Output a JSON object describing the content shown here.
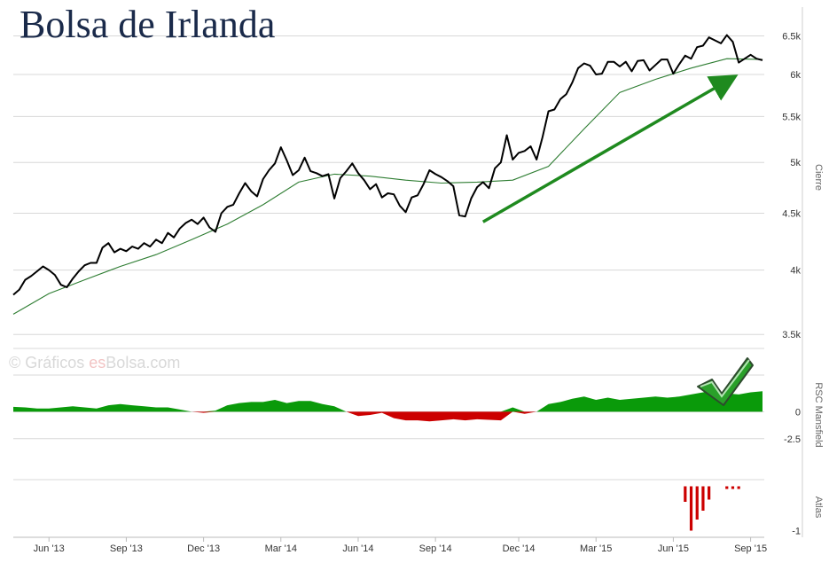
{
  "title": "Bolsa de Irlanda",
  "watermark": {
    "prefix": "© Gráficos ",
    "brand": "es",
    "suffix": "Bolsa.com"
  },
  "colors": {
    "price": "#000000",
    "moving_average": "#2e7d32",
    "trend_arrow": "#1f8a1f",
    "positive_fill": "#0a9a0a",
    "negative_fill": "#cc0000",
    "atlas_bars": "#cc0000",
    "grid": "#d8d8d8"
  },
  "chart_data": [
    {
      "type": "line",
      "panel": "price",
      "y_axis_title": "Cierre",
      "y_scale": "log",
      "ylim": [
        3400,
        6900
      ],
      "y_ticks": [
        3500,
        4000,
        4500,
        5000,
        5500,
        6000,
        6500
      ],
      "y_tick_labels": [
        "3.5k",
        "4k",
        "4.5k",
        "5k",
        "5.5k",
        "6k",
        "6.5k"
      ],
      "x_ticks": [
        "Jun '13",
        "Sep '13",
        "Dec '13",
        "Mar '14",
        "Jun '14",
        "Sep '14",
        "Dec '14",
        "Mar '15",
        "Jun '15",
        "Sep '15"
      ],
      "x_range_weeks": [
        0,
        126
      ],
      "x_tick_weeks": [
        6,
        19,
        32,
        45,
        58,
        71,
        85,
        98,
        111,
        124
      ],
      "grid": true,
      "series": [
        {
          "role": "price",
          "x": [
            0,
            1,
            2,
            3,
            4,
            5,
            6,
            7,
            8,
            9,
            10,
            11,
            12,
            13,
            14,
            15,
            16,
            17,
            18,
            19,
            20,
            21,
            22,
            23,
            24,
            25,
            26,
            27,
            28,
            29,
            30,
            31,
            32,
            33,
            34,
            35,
            36,
            37,
            38,
            39,
            40,
            41,
            42,
            43,
            44,
            45,
            46,
            47,
            48,
            49,
            50,
            51,
            52,
            53,
            54,
            55,
            56,
            57,
            58,
            59,
            60,
            61,
            62,
            63,
            64,
            65,
            66,
            67,
            68,
            69,
            70,
            71,
            72,
            73,
            74,
            75,
            76,
            77,
            78,
            79,
            80,
            81,
            82,
            83,
            84,
            85,
            86,
            87,
            88,
            89,
            90,
            91,
            92,
            93,
            94,
            95,
            96,
            97,
            98,
            99,
            100,
            101,
            102,
            103,
            104,
            105,
            106,
            107,
            108,
            109,
            110,
            111,
            112,
            113,
            114,
            115,
            116,
            117,
            118,
            119,
            120,
            121,
            122,
            123,
            124,
            125,
            126
          ],
          "values": [
            3800,
            3840,
            3920,
            3950,
            3990,
            4030,
            4000,
            3960,
            3880,
            3860,
            3930,
            3990,
            4040,
            4060,
            4060,
            4190,
            4230,
            4150,
            4180,
            4160,
            4200,
            4180,
            4230,
            4200,
            4260,
            4230,
            4320,
            4280,
            4360,
            4410,
            4440,
            4400,
            4460,
            4370,
            4330,
            4500,
            4560,
            4580,
            4690,
            4790,
            4710,
            4660,
            4830,
            4920,
            4990,
            5160,
            5020,
            4870,
            4920,
            5050,
            4910,
            4890,
            4860,
            4880,
            4640,
            4840,
            4910,
            4990,
            4890,
            4820,
            4730,
            4780,
            4650,
            4690,
            4680,
            4570,
            4510,
            4650,
            4670,
            4780,
            4920,
            4880,
            4850,
            4810,
            4760,
            4480,
            4470,
            4640,
            4750,
            4800,
            4740,
            4940,
            5000,
            5290,
            5030,
            5100,
            5120,
            5170,
            5030,
            5270,
            5560,
            5580,
            5700,
            5760,
            5900,
            6080,
            6140,
            6110,
            6000,
            6010,
            6160,
            6160,
            6100,
            6160,
            6040,
            6170,
            6180,
            6050,
            6120,
            6190,
            6190,
            6010,
            6130,
            6240,
            6200,
            6350,
            6370,
            6480,
            6440,
            6400,
            6510,
            6420,
            6150,
            6200,
            6250,
            6200,
            6180
          ]
        },
        {
          "role": "moving_average",
          "x": [
            0,
            6,
            12,
            18,
            24,
            30,
            36,
            42,
            48,
            54,
            60,
            66,
            72,
            78,
            84,
            90,
            96,
            102,
            108,
            114,
            120,
            126
          ],
          "values": [
            3650,
            3810,
            3920,
            4030,
            4130,
            4260,
            4400,
            4580,
            4800,
            4880,
            4860,
            4820,
            4790,
            4800,
            4820,
            4960,
            5360,
            5780,
            5940,
            6080,
            6200,
            6190
          ]
        }
      ],
      "annotations": [
        {
          "type": "arrow",
          "from": {
            "x": 79,
            "y": 4420
          },
          "to": {
            "x": 121,
            "y": 5960
          }
        }
      ]
    },
    {
      "type": "area",
      "panel": "rsc",
      "y_axis_title": "RSC Mansfield",
      "ylim": [
        -4.0,
        3.4
      ],
      "y_ticks": [
        -2.5,
        0
      ],
      "y_tick_labels": [
        "-2.5",
        "0"
      ],
      "grid": true,
      "x": [
        0,
        2,
        4,
        6,
        8,
        10,
        12,
        14,
        16,
        18,
        20,
        22,
        24,
        26,
        28,
        30,
        32,
        34,
        36,
        38,
        40,
        42,
        44,
        46,
        48,
        50,
        52,
        54,
        56,
        58,
        60,
        62,
        64,
        66,
        68,
        70,
        72,
        74,
        76,
        78,
        80,
        82,
        84,
        86,
        88,
        90,
        92,
        94,
        96,
        98,
        100,
        102,
        104,
        106,
        108,
        110,
        112,
        114,
        116,
        118,
        120,
        122,
        124,
        126
      ],
      "values": [
        0.45,
        0.4,
        0.3,
        0.3,
        0.4,
        0.5,
        0.4,
        0.3,
        0.6,
        0.7,
        0.6,
        0.5,
        0.4,
        0.4,
        0.2,
        0.0,
        -0.1,
        0.1,
        0.6,
        0.8,
        0.9,
        0.9,
        1.1,
        0.8,
        1.0,
        1.0,
        0.7,
        0.5,
        0.0,
        -0.4,
        -0.3,
        -0.1,
        -0.6,
        -0.8,
        -0.8,
        -0.9,
        -0.8,
        -0.7,
        -0.8,
        -0.7,
        -0.75,
        -0.8,
        0.4,
        -0.2,
        0.0,
        0.7,
        0.9,
        1.2,
        1.4,
        1.1,
        1.3,
        1.1,
        1.2,
        1.3,
        1.4,
        1.3,
        1.4,
        1.6,
        1.8,
        2.0,
        1.7,
        1.6,
        1.8,
        1.9
      ]
    },
    {
      "type": "bar",
      "panel": "atlas",
      "y_axis_title": "Atlas",
      "ylim": [
        -1.05,
        0.15
      ],
      "y_ticks": [
        -1
      ],
      "y_tick_labels": [
        "-1"
      ],
      "x": [
        113,
        114,
        115,
        116,
        117,
        120,
        121,
        122
      ],
      "values": [
        -0.35,
        -1.0,
        -0.75,
        -0.55,
        -0.3,
        -0.06,
        -0.06,
        -0.06
      ]
    }
  ]
}
